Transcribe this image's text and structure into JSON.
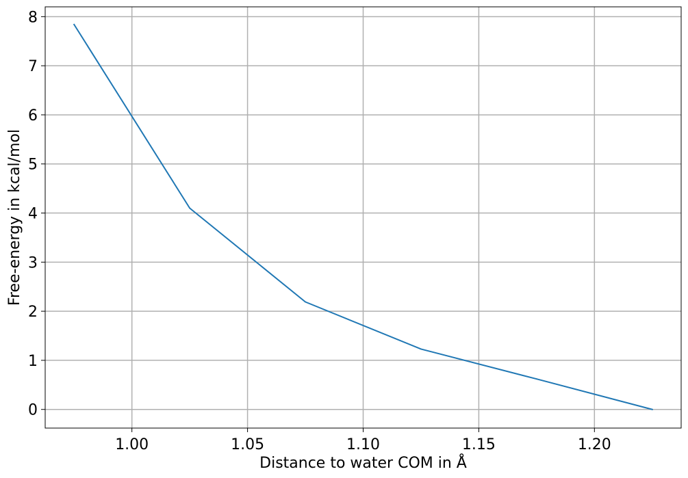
{
  "chart_data": {
    "type": "line",
    "title": "",
    "xlabel": "Distance to water COM in Å",
    "ylabel": "Free-energy in kcal/mol",
    "xlim": [
      0.9625,
      1.2375
    ],
    "ylim": [
      -0.38,
      8.2
    ],
    "grid": true,
    "legend": "none",
    "x_ticks": [
      1.0,
      1.05,
      1.1,
      1.15,
      1.2
    ],
    "x_tick_labels": [
      "1.00",
      "1.05",
      "1.10",
      "1.15",
      "1.20"
    ],
    "y_ticks": [
      0,
      1,
      2,
      3,
      4,
      5,
      6,
      7,
      8
    ],
    "y_tick_labels": [
      "0",
      "1",
      "2",
      "3",
      "4",
      "5",
      "6",
      "7",
      "8"
    ],
    "series": [
      {
        "color": "#1f77b4",
        "x": [
          0.975,
          1.025,
          1.075,
          1.125,
          1.175,
          1.225
        ],
        "y": [
          7.84,
          4.1,
          2.19,
          1.23,
          0.62,
          0.0
        ]
      }
    ]
  },
  "colors": {
    "grid": "#b0b0b0",
    "axes": "#000000",
    "background": "#ffffff"
  }
}
